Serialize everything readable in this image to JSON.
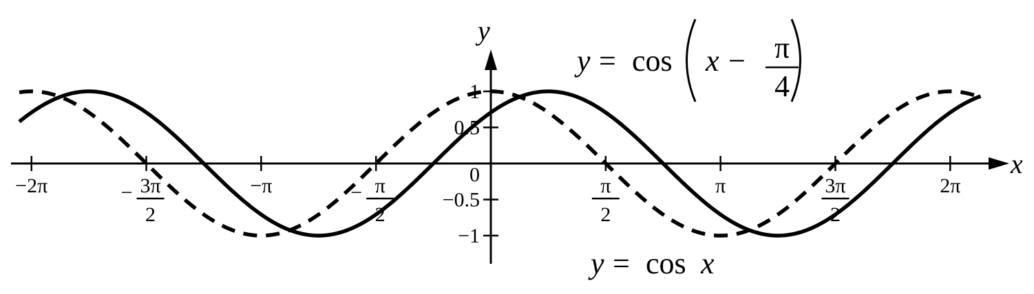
{
  "chart_data": {
    "type": "line",
    "x_axis": {
      "name": "x",
      "range": [
        -6.6,
        6.9
      ],
      "ticks": [
        {
          "value": -6.283185307,
          "label": "−2π"
        },
        {
          "value": -4.71238898,
          "sign": "−",
          "num": "3π",
          "den": "2"
        },
        {
          "value": -3.141592654,
          "label": "−π"
        },
        {
          "value": -1.570796327,
          "sign": "−",
          "num": "π",
          "den": "2"
        },
        {
          "value": 1.570796327,
          "num": "π",
          "den": "2"
        },
        {
          "value": 3.141592654,
          "label": "π"
        },
        {
          "value": 4.71238898,
          "num": "3π",
          "den": "2"
        },
        {
          "value": 6.283185307,
          "label": "2π"
        }
      ]
    },
    "y_axis": {
      "name": "y",
      "range": [
        -1.35,
        1.55
      ],
      "ticks": [
        {
          "value": 1,
          "label": "1"
        },
        {
          "value": 0.5,
          "label": "0.5"
        },
        {
          "value": -0.5,
          "label": "−0.5"
        },
        {
          "value": -1,
          "label": "−1"
        }
      ]
    },
    "origin_label": "0",
    "series": [
      {
        "name": "y = cos(x − π/4)",
        "function": "cos(x - pi/4)",
        "style": "solid",
        "x_range": [
          -6.45,
          6.7
        ]
      },
      {
        "name": "y = cos x",
        "function": "cos(x)",
        "style": "dashed",
        "x_range": [
          -6.45,
          6.7
        ]
      }
    ],
    "annotations": {
      "shifted_curve": {
        "lhs": "y",
        "eq": "=",
        "func": "cos",
        "arg": "x",
        "minus": "−",
        "num": "π",
        "den": "4"
      },
      "base_curve": {
        "lhs": "y",
        "eq": "=",
        "func": "cos",
        "arg": "x"
      }
    },
    "grid": false,
    "legend": "none"
  }
}
